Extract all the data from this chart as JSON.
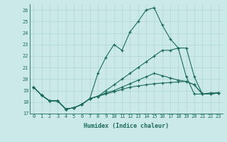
{
  "xlabel": "Humidex (Indice chaleur)",
  "xlim": [
    -0.5,
    23.5
  ],
  "ylim": [
    17,
    26.5
  ],
  "yticks": [
    17,
    18,
    19,
    20,
    21,
    22,
    23,
    24,
    25,
    26
  ],
  "xticks": [
    0,
    1,
    2,
    3,
    4,
    5,
    6,
    7,
    8,
    9,
    10,
    11,
    12,
    13,
    14,
    15,
    16,
    17,
    18,
    19,
    20,
    21,
    22,
    23
  ],
  "bg_color": "#cce9e9",
  "line_color": "#1a6b5a",
  "grid_color": "#aed4d4",
  "series": [
    [
      19.3,
      18.6,
      18.1,
      18.1,
      17.4,
      17.5,
      17.8,
      18.3,
      20.5,
      21.9,
      23.0,
      22.5,
      24.1,
      25.0,
      26.0,
      26.2,
      24.7,
      23.5,
      22.7,
      20.2,
      18.7,
      18.7,
      18.8,
      18.8
    ],
    [
      19.3,
      18.6,
      18.1,
      18.1,
      17.4,
      17.5,
      17.8,
      18.3,
      18.5,
      19.0,
      19.5,
      20.0,
      20.5,
      21.0,
      21.5,
      22.0,
      22.5,
      22.5,
      22.7,
      22.7,
      20.2,
      18.7,
      18.7,
      18.8
    ],
    [
      19.3,
      18.6,
      18.1,
      18.1,
      17.4,
      17.5,
      17.8,
      18.3,
      18.5,
      18.8,
      19.0,
      19.3,
      19.6,
      19.9,
      20.2,
      20.5,
      20.3,
      20.1,
      19.9,
      19.8,
      19.5,
      18.7,
      18.7,
      18.8
    ],
    [
      19.3,
      18.6,
      18.1,
      18.1,
      17.4,
      17.5,
      17.8,
      18.3,
      18.5,
      18.7,
      18.9,
      19.1,
      19.3,
      19.4,
      19.5,
      19.6,
      19.65,
      19.7,
      19.75,
      19.8,
      19.5,
      18.7,
      18.7,
      18.8
    ]
  ]
}
